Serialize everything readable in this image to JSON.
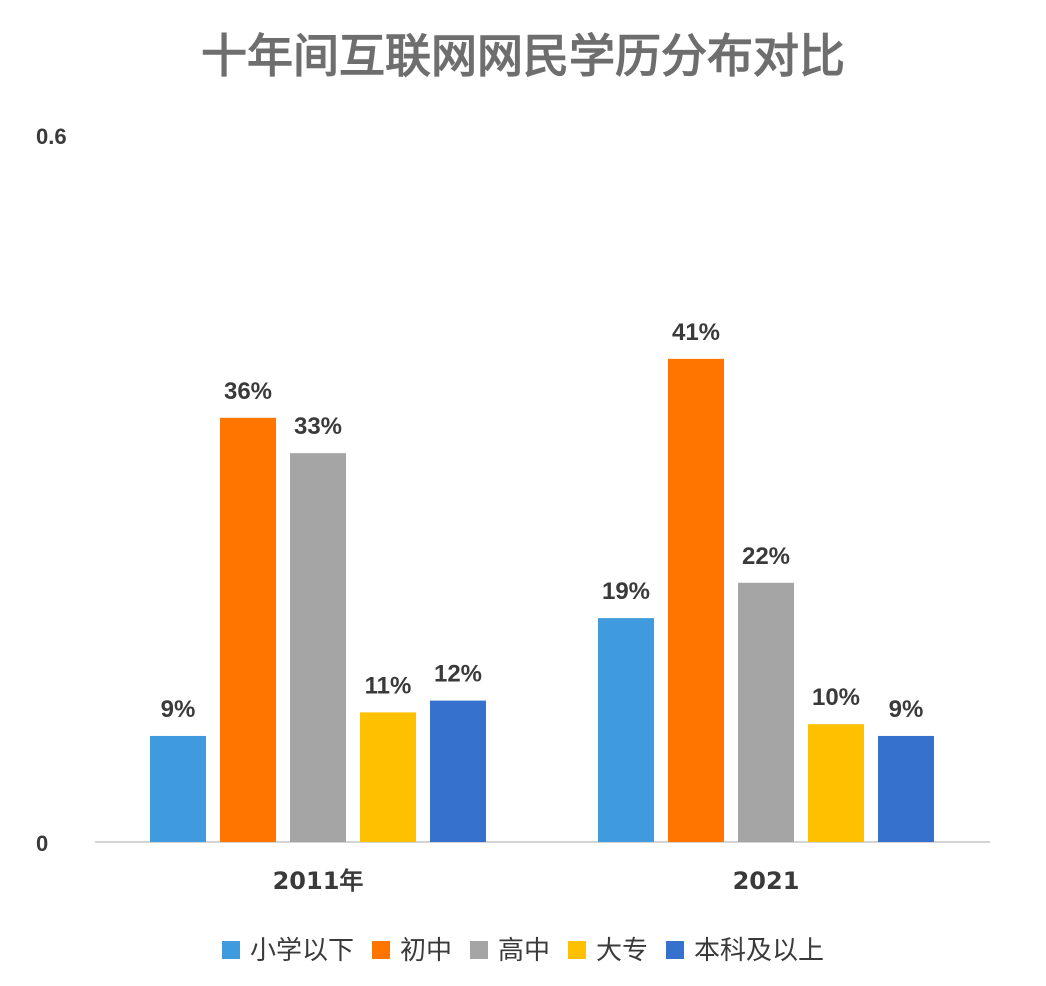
{
  "chart_data": {
    "type": "bar",
    "title": "十年间互联网网民学历分布对比",
    "xlabel": "",
    "ylabel": "",
    "ylim": [
      0,
      0.6
    ],
    "yticks": [
      "0",
      "0.6"
    ],
    "categories": [
      "2011年",
      "2021"
    ],
    "series": [
      {
        "name": "小学以下",
        "color": "#3f9bdd",
        "values": [
          0.09,
          0.19
        ],
        "labels": [
          "9%",
          "19%"
        ]
      },
      {
        "name": "初中",
        "color": "#ff7500",
        "values": [
          0.36,
          0.41
        ],
        "labels": [
          "36%",
          "41%"
        ]
      },
      {
        "name": "高中",
        "color": "#a5a5a5",
        "values": [
          0.33,
          0.22
        ],
        "labels": [
          "33%",
          "22%"
        ]
      },
      {
        "name": "大专",
        "color": "#ffc000",
        "values": [
          0.11,
          0.1
        ],
        "labels": [
          "11%",
          "10%"
        ]
      },
      {
        "name": "本科及以上",
        "color": "#3672cd",
        "values": [
          0.12,
          0.09
        ],
        "labels": [
          "12%",
          "9%"
        ]
      }
    ],
    "grid": false,
    "legend_position": "bottom"
  }
}
